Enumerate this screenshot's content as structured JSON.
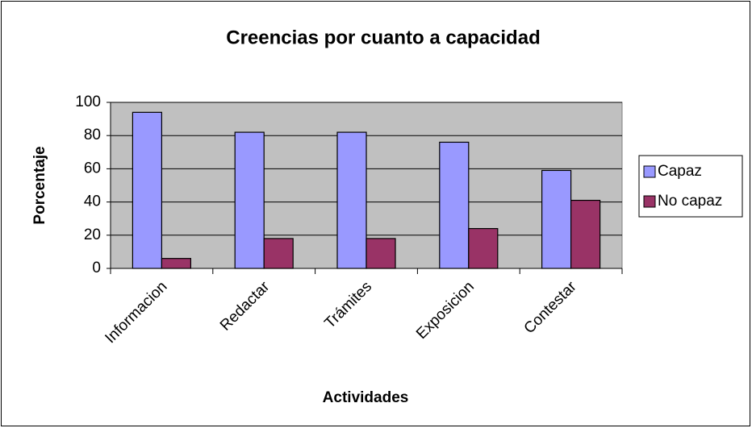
{
  "chart_data": {
    "type": "bar",
    "title": "Creencias por cuanto a capacidad",
    "x_label": "Actividades",
    "y_label": "Porcentaje",
    "categories": [
      "Informacion",
      "Redactar",
      "Trámites",
      "Exposicion",
      "Contestar"
    ],
    "series": [
      {
        "name": "Capaz",
        "color": "#9999ff",
        "values": [
          94,
          82,
          82,
          76,
          59
        ]
      },
      {
        "name": "No capaz",
        "color": "#993366",
        "values": [
          6,
          18,
          18,
          24,
          41
        ]
      }
    ],
    "ylim": [
      0,
      100
    ],
    "yticks": [
      0,
      20,
      40,
      60,
      80,
      100
    ],
    "grid": true,
    "legend": "right"
  }
}
